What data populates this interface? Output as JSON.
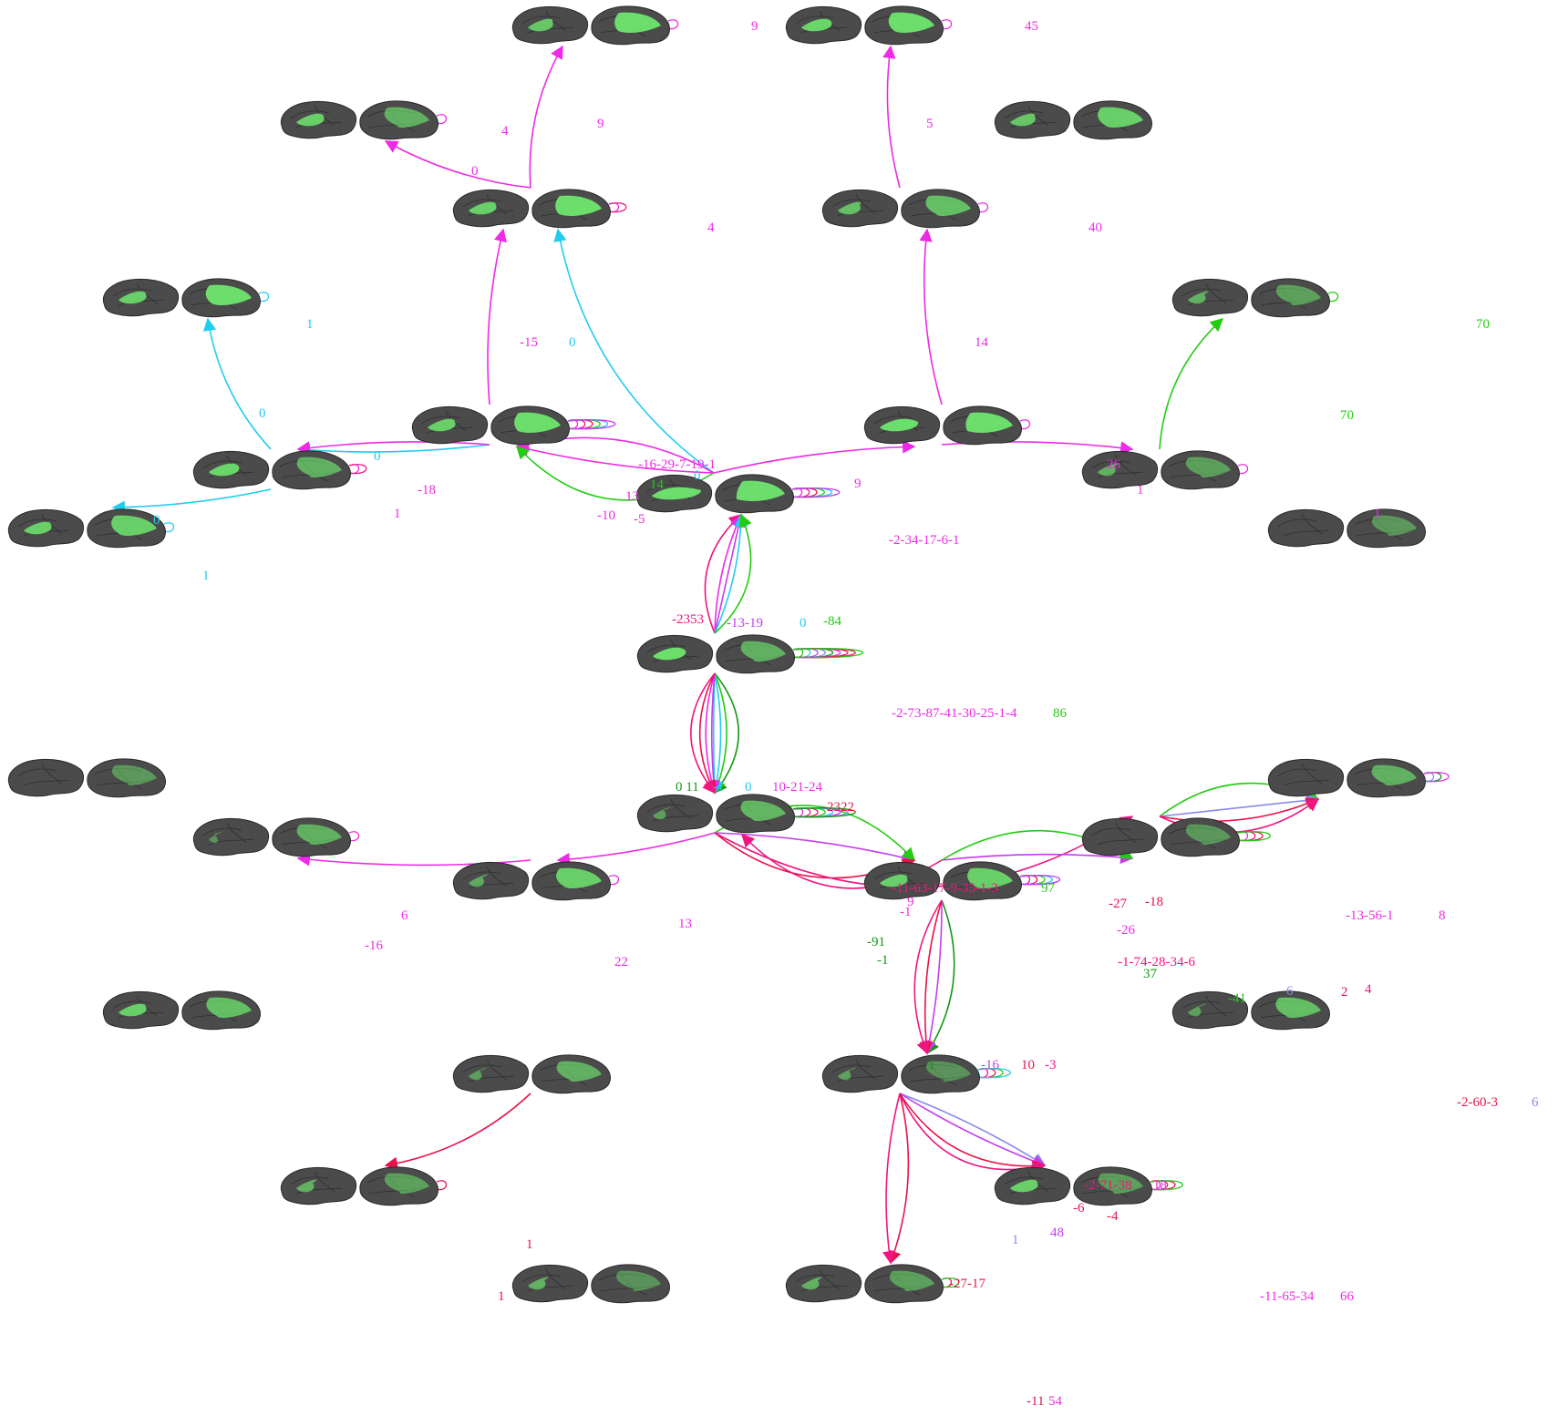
{
  "colors": {
    "magenta": "#ee2ae6",
    "pink": "#f0157f",
    "red": "#e8134a",
    "violet": "#c53bf0",
    "cyan": "#22ccee",
    "green": "#22cc11",
    "darkgreen": "#119911",
    "lavender": "#8888ee",
    "highlight": "#6ee66e",
    "cortex": "#4b4b4b"
  },
  "nodes": [
    {
      "id": "n1",
      "label": "",
      "hl": [
        0.45,
        0.7
      ]
    },
    {
      "id": "n2",
      "label": "",
      "hl": [
        0.55,
        0.6
      ]
    },
    {
      "id": "n3",
      "label": "",
      "hl": [
        0.5,
        0.3
      ]
    },
    {
      "id": "n4",
      "label": "",
      "hl": [
        0.45,
        0.5
      ]
    },
    {
      "id": "n5",
      "label": "",
      "hl": [
        0.5,
        0.7
      ]
    },
    {
      "id": "n6",
      "label": "",
      "hl": [
        0.4,
        0.4
      ]
    },
    {
      "id": "n7",
      "label": "",
      "hl": [
        0.5,
        0.6
      ]
    },
    {
      "id": "n8",
      "label": "",
      "hl": [
        0.3,
        0.2
      ]
    },
    {
      "id": "n9",
      "label": "",
      "hl": [
        0.5,
        0.7
      ]
    },
    {
      "id": "n10",
      "label": "",
      "hl": [
        0.7,
        0.8
      ]
    },
    {
      "id": "n11",
      "label": "",
      "hl": [
        0.55,
        0.3
      ]
    },
    {
      "id": "n12",
      "label": "",
      "hl": [
        0.3,
        0.2
      ]
    },
    {
      "id": "n13",
      "label": "",
      "hl": [
        0.5,
        0.5
      ]
    },
    {
      "id": "n14",
      "label": "",
      "hl": [
        0.9,
        0.9
      ]
    },
    {
      "id": "n15",
      "label": "",
      "hl": [
        0.0,
        0.15
      ]
    },
    {
      "id": "n16",
      "label": "",
      "hl": [
        0.0,
        0.15
      ]
    },
    {
      "id": "n17",
      "label": "",
      "hl": [
        0.6,
        0.3
      ]
    },
    {
      "id": "n18",
      "label": "",
      "hl": [
        0.2,
        0.35
      ]
    },
    {
      "id": "n19",
      "label": "",
      "hl": [
        0.1,
        0.3
      ]
    },
    {
      "id": "n20",
      "label": "",
      "hl": [
        0.25,
        0.5
      ]
    },
    {
      "id": "n21",
      "label": "",
      "hl": [
        0.5,
        0.5
      ]
    },
    {
      "id": "n22",
      "label": "",
      "hl": [
        0.0,
        0.15
      ]
    },
    {
      "id": "n23",
      "label": "",
      "hl": [
        0.0,
        0.3
      ]
    },
    {
      "id": "n24",
      "label": "",
      "hl": [
        0.2,
        0.4
      ]
    },
    {
      "id": "n25",
      "label": "",
      "hl": [
        0.5,
        0.4
      ]
    },
    {
      "id": "n26",
      "label": "",
      "hl": [
        0.2,
        0.1
      ]
    },
    {
      "id": "n27",
      "label": "",
      "hl": [
        0.2,
        0.3
      ]
    },
    {
      "id": "n28",
      "label": "",
      "hl": [
        0.3,
        0.2
      ]
    },
    {
      "id": "n29",
      "label": "",
      "hl": [
        0.5,
        0.2
      ]
    },
    {
      "id": "n30",
      "label": "",
      "hl": [
        0.3,
        0.1
      ]
    },
    {
      "id": "n31",
      "label": "",
      "hl": [
        0.3,
        0.2
      ]
    }
  ],
  "edge_labels": {
    "e_9_top": "9",
    "e_0_n3": "0",
    "e_5": "5",
    "e_minus15": "-15",
    "e_0_cyan_up": "0",
    "e_14_up": "14",
    "e_0_n4": "0",
    "e_70": "70",
    "e_0_n6": "0",
    "e_minus18": "-18",
    "e_0_n7": "0",
    "e_13": "13",
    "e_minus10": "-10",
    "e_minus5": "-5",
    "e_9_mid": "9",
    "e_1_mid": "1",
    "e_14_green": "14",
    "e_0_cyan_self": "0",
    "e_minus2353": "-2353",
    "e_minus13_19": "-13-19",
    "e_0_cyan_mid": "0",
    "e_minus84": "-84",
    "e_0_11": "0 11",
    "e_minus1": "-1",
    "e_0_b": "0",
    "e_10_21_24": "10-21-24",
    "e_minus2322": "-2322",
    "e_13_low": "13",
    "e_minus16_low": "-16",
    "e_9_low": "9",
    "e_minus1_b": "-1",
    "e_minus91": "-91",
    "e_minus1_c": "-1",
    "e_minus27": "-27",
    "e_minus18_b": "-18",
    "e_minus26": "-26",
    "e_37": "37",
    "e_minus41": "-41",
    "e_6_lav": "6",
    "e_2": "2",
    "e_4": "4",
    "e_1_low": "1",
    "e_minus16_c": "-16",
    "e_10_b": "10",
    "e_minus3": "-3",
    "e_1_red": "1",
    "e_minus6": "-6",
    "e_minus4": "-4",
    "e_1_lav": "1",
    "e_48": "48",
    "e_minus27_17": "-27-17"
  },
  "self_labels": {
    "s_n1": "9",
    "s_n2": "45",
    "s_n3": "4",
    "s_n5": "4",
    "s_n6": "40",
    "s_n7": "1",
    "s_n8": "70",
    "s_n9": "-16-29-7-19-1",
    "s_n11": "1",
    "s_n10": "26",
    "s_n12": "1",
    "s_n13": "1",
    "s_n14": "-2-34-17-6-1",
    "s_n17": "-2-73-87-41-30-25-1-4",
    "s_n17b": "86",
    "s_n18": "-11-63-17-9-35-1-3",
    "s_n18b": "97",
    "s_n19": "6",
    "s_n20": "22",
    "s_n21": "-1-74-28-34-6",
    "s_n22": "-13-56-1",
    "s_n22b": "8",
    "s_n23": "-2-60-3",
    "s_n23b": "6",
    "s_n26": "-2-71-38",
    "s_n26b": "18",
    "s_n28": "1",
    "s_n29": "-11-65-34",
    "s_n29b": "66",
    "s_n31": "-11",
    "s_n31b": "54"
  }
}
